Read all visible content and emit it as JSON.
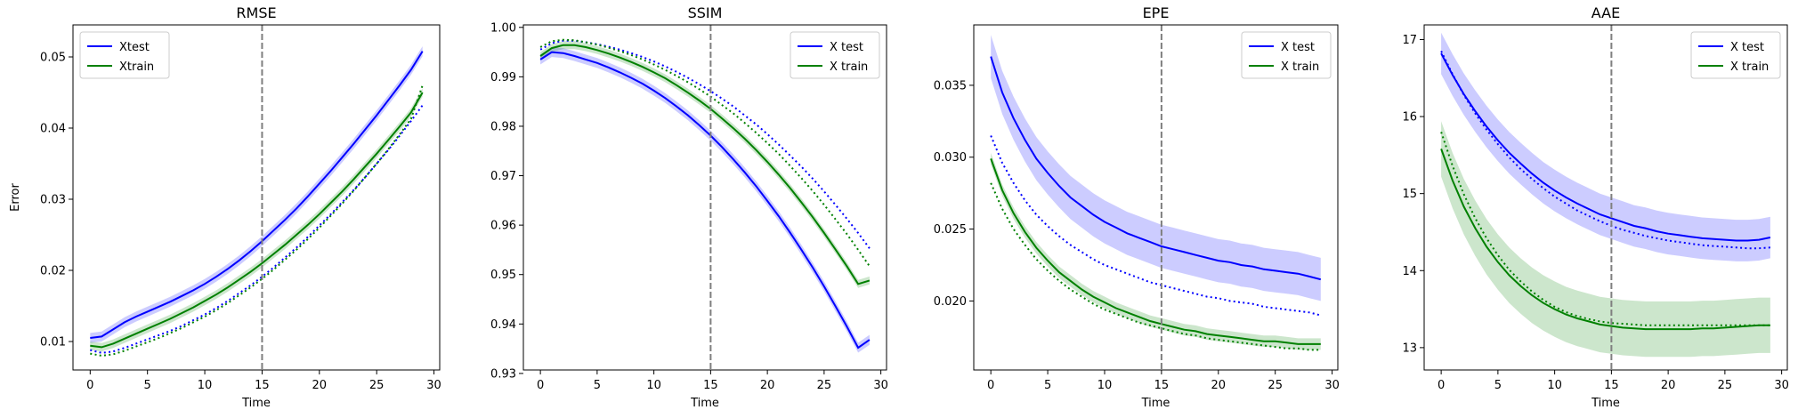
{
  "figure": {
    "colors": {
      "test": "#0000ff",
      "train": "#008000",
      "vline": "#7f7f7f"
    },
    "x_tick_labels": [
      "0",
      "5",
      "10",
      "15",
      "20",
      "25",
      "30"
    ]
  },
  "chart_data": [
    {
      "type": "line",
      "title": "RMSE",
      "xlabel": "Time",
      "ylabel": "Error",
      "xlim": [
        -1.5,
        30.5
      ],
      "ylim": [
        0.006,
        0.0545
      ],
      "x_ticks": [
        0,
        5,
        10,
        15,
        20,
        25,
        30
      ],
      "y_ticks": [
        0.01,
        0.02,
        0.03,
        0.04,
        0.05
      ],
      "y_tick_labels": [
        "0.01",
        "0.02",
        "0.03",
        "0.04",
        "0.05"
      ],
      "vline_x": 15,
      "legend_position": "top-left",
      "grid": false,
      "x": [
        0,
        1,
        2,
        3,
        4,
        5,
        6,
        7,
        8,
        9,
        10,
        11,
        12,
        13,
        14,
        15,
        16,
        17,
        18,
        19,
        20,
        21,
        22,
        23,
        24,
        25,
        26,
        27,
        28,
        29
      ],
      "series": [
        {
          "name": "Xtest",
          "style": "solid",
          "color": "#0000ff",
          "values": [
            0.0105,
            0.0107,
            0.0117,
            0.0127,
            0.0135,
            0.0142,
            0.0149,
            0.0156,
            0.0164,
            0.0172,
            0.0181,
            0.0191,
            0.0202,
            0.0214,
            0.0227,
            0.0241,
            0.0256,
            0.0271,
            0.0287,
            0.0304,
            0.0322,
            0.034,
            0.0359,
            0.0378,
            0.0398,
            0.0418,
            0.0439,
            0.046,
            0.0482,
            0.0508
          ],
          "band_width": 0.0007
        },
        {
          "name": "",
          "style": "dotted",
          "color": "#0000ff",
          "values": [
            0.0088,
            0.0084,
            0.0086,
            0.0091,
            0.0097,
            0.0103,
            0.0109,
            0.0115,
            0.0122,
            0.013,
            0.0138,
            0.0147,
            0.0157,
            0.0168,
            0.0179,
            0.0191,
            0.0204,
            0.0218,
            0.0232,
            0.0247,
            0.0263,
            0.0279,
            0.0296,
            0.0313,
            0.0331,
            0.035,
            0.0369,
            0.0389,
            0.041,
            0.0432
          ]
        },
        {
          "name": "Xtrain",
          "style": "solid",
          "color": "#008000",
          "values": [
            0.0094,
            0.0092,
            0.0097,
            0.0104,
            0.0111,
            0.0118,
            0.0125,
            0.0132,
            0.014,
            0.0148,
            0.0157,
            0.0166,
            0.0176,
            0.0187,
            0.0198,
            0.021,
            0.0223,
            0.0236,
            0.025,
            0.0264,
            0.0279,
            0.0295,
            0.0311,
            0.0328,
            0.0346,
            0.0364,
            0.0383,
            0.0402,
            0.0422,
            0.045
          ],
          "band_width": 0.0006
        },
        {
          "name": "",
          "style": "dotted",
          "color": "#008000",
          "values": [
            0.0083,
            0.008,
            0.0082,
            0.0087,
            0.0093,
            0.0099,
            0.0105,
            0.0112,
            0.0119,
            0.0127,
            0.0135,
            0.0144,
            0.0154,
            0.0165,
            0.0176,
            0.0188,
            0.0201,
            0.0215,
            0.0229,
            0.0244,
            0.026,
            0.0277,
            0.0294,
            0.0312,
            0.0331,
            0.035,
            0.037,
            0.0391,
            0.0413,
            0.046
          ]
        }
      ]
    },
    {
      "type": "line",
      "title": "SSIM",
      "xlabel": "Time",
      "ylabel": "",
      "xlim": [
        -1.5,
        30.5
      ],
      "ylim": [
        0.9307,
        1.0005
      ],
      "x_ticks": [
        0,
        5,
        10,
        15,
        20,
        25,
        30
      ],
      "y_ticks": [
        0.93,
        0.94,
        0.95,
        0.96,
        0.97,
        0.98,
        0.99,
        1.0
      ],
      "y_tick_labels": [
        "0.93",
        "0.94",
        "0.95",
        "0.96",
        "0.97",
        "0.98",
        "0.99",
        "1.00"
      ],
      "vline_x": 15,
      "legend_position": "top-right",
      "grid": false,
      "x": [
        0,
        1,
        2,
        3,
        4,
        5,
        6,
        7,
        8,
        9,
        10,
        11,
        12,
        13,
        14,
        15,
        16,
        17,
        18,
        19,
        20,
        21,
        22,
        23,
        24,
        25,
        26,
        27,
        28,
        29
      ],
      "series": [
        {
          "name": "X test",
          "style": "solid",
          "color": "#0000ff",
          "values": [
            0.9935,
            0.995,
            0.9948,
            0.9942,
            0.9935,
            0.9928,
            0.9919,
            0.9909,
            0.9898,
            0.9886,
            0.9872,
            0.9857,
            0.984,
            0.9822,
            0.9802,
            0.9781,
            0.9758,
            0.9733,
            0.9707,
            0.9679,
            0.9649,
            0.9618,
            0.9585,
            0.955,
            0.9514,
            0.9476,
            0.9436,
            0.9395,
            0.9352,
            0.9368
          ],
          "band_width": 0.001
        },
        {
          "name": "",
          "style": "dotted",
          "color": "#0000ff",
          "values": [
            0.9955,
            0.9968,
            0.9973,
            0.9973,
            0.997,
            0.9966,
            0.9961,
            0.9955,
            0.9948,
            0.994,
            0.9931,
            0.9921,
            0.991,
            0.9898,
            0.9885,
            0.9871,
            0.9856,
            0.984,
            0.9822,
            0.9804,
            0.9784,
            0.9763,
            0.9741,
            0.9718,
            0.9694,
            0.9668,
            0.9641,
            0.9613,
            0.9584,
            0.9553
          ],
          "band_width": 0
        },
        {
          "name": "X train",
          "style": "solid",
          "color": "#008000",
          "values": [
            0.9942,
            0.9958,
            0.9964,
            0.9964,
            0.996,
            0.9954,
            0.9947,
            0.9939,
            0.993,
            0.992,
            0.9909,
            0.9897,
            0.9883,
            0.9868,
            0.9852,
            0.9835,
            0.9816,
            0.9796,
            0.9775,
            0.9752,
            0.9728,
            0.9702,
            0.9675,
            0.9646,
            0.9616,
            0.9584,
            0.9551,
            0.9517,
            0.9481,
            0.9488
          ],
          "band_width": 0.0008
        },
        {
          "name": "",
          "style": "dotted",
          "color": "#008000",
          "values": [
            0.996,
            0.9972,
            0.9975,
            0.9974,
            0.997,
            0.9965,
            0.9959,
            0.9952,
            0.9944,
            0.9935,
            0.9925,
            0.9914,
            0.9902,
            0.9889,
            0.9875,
            0.986,
            0.9843,
            0.9826,
            0.9807,
            0.9787,
            0.9766,
            0.9744,
            0.972,
            0.9695,
            0.9669,
            0.9641,
            0.9612,
            0.9582,
            0.955,
            0.9517
          ],
          "band_width": 0
        }
      ]
    },
    {
      "type": "line",
      "title": "EPE",
      "xlabel": "Time",
      "ylabel": "",
      "xlim": [
        -1.5,
        30.5
      ],
      "ylim": [
        0.0152,
        0.0392
      ],
      "x_ticks": [
        0,
        5,
        10,
        15,
        20,
        25,
        30
      ],
      "y_ticks": [
        0.02,
        0.025,
        0.03,
        0.035
      ],
      "y_tick_labels": [
        "0.020",
        "0.025",
        "0.030",
        "0.035"
      ],
      "vline_x": 15,
      "legend_position": "top-right",
      "grid": false,
      "x": [
        0,
        1,
        2,
        3,
        4,
        5,
        6,
        7,
        8,
        9,
        10,
        11,
        12,
        13,
        14,
        15,
        16,
        17,
        18,
        19,
        20,
        21,
        22,
        23,
        24,
        25,
        26,
        27,
        28,
        29
      ],
      "series": [
        {
          "name": "X test",
          "style": "solid",
          "color": "#0000ff",
          "values": [
            0.037,
            0.0345,
            0.0327,
            0.0312,
            0.0299,
            0.0289,
            0.028,
            0.0272,
            0.0266,
            0.026,
            0.0255,
            0.0251,
            0.0247,
            0.0244,
            0.0241,
            0.0238,
            0.0236,
            0.0234,
            0.0232,
            0.023,
            0.0228,
            0.0227,
            0.0225,
            0.0224,
            0.0222,
            0.0221,
            0.022,
            0.0219,
            0.0217,
            0.0215
          ],
          "band_width": 0.0015
        },
        {
          "name": "",
          "style": "dotted",
          "color": "#0000ff",
          "values": [
            0.0315,
            0.0296,
            0.0282,
            0.027,
            0.026,
            0.0252,
            0.0245,
            0.0239,
            0.0234,
            0.0229,
            0.0225,
            0.0222,
            0.0219,
            0.0216,
            0.0213,
            0.0211,
            0.0209,
            0.0207,
            0.0205,
            0.0203,
            0.0202,
            0.02,
            0.0199,
            0.0198,
            0.0196,
            0.0195,
            0.0194,
            0.0193,
            0.0192,
            0.019
          ]
        },
        {
          "name": "X train",
          "style": "solid",
          "color": "#008000",
          "values": [
            0.0299,
            0.0277,
            0.0261,
            0.0248,
            0.0237,
            0.0228,
            0.022,
            0.0214,
            0.0208,
            0.0203,
            0.0199,
            0.0195,
            0.0192,
            0.0189,
            0.0186,
            0.0184,
            0.0182,
            0.018,
            0.0179,
            0.0177,
            0.0176,
            0.0175,
            0.0174,
            0.0173,
            0.0172,
            0.0172,
            0.0171,
            0.017,
            0.017,
            0.017
          ],
          "band_width": 0.0004
        },
        {
          "name": "",
          "style": "dotted",
          "color": "#008000",
          "values": [
            0.0282,
            0.0264,
            0.025,
            0.0239,
            0.0229,
            0.0221,
            0.0214,
            0.0208,
            0.0203,
            0.0198,
            0.0194,
            0.0191,
            0.0188,
            0.0185,
            0.0183,
            0.0181,
            0.0179,
            0.0177,
            0.0176,
            0.0174,
            0.0173,
            0.0172,
            0.0171,
            0.017,
            0.0169,
            0.0168,
            0.0167,
            0.0167,
            0.0166,
            0.0166
          ]
        }
      ]
    },
    {
      "type": "line",
      "title": "AAE",
      "xlabel": "Time",
      "ylabel": "",
      "xlim": [
        -1.5,
        30.5
      ],
      "ylim": [
        12.71,
        17.19
      ],
      "x_ticks": [
        0,
        5,
        10,
        15,
        20,
        25,
        30
      ],
      "y_ticks": [
        13,
        14,
        15,
        16,
        17
      ],
      "y_tick_labels": [
        "13",
        "14",
        "15",
        "16",
        "17"
      ],
      "vline_x": 15,
      "legend_position": "top-right",
      "grid": false,
      "x": [
        0,
        1,
        2,
        3,
        4,
        5,
        6,
        7,
        8,
        9,
        10,
        11,
        12,
        13,
        14,
        15,
        16,
        17,
        18,
        19,
        20,
        21,
        22,
        23,
        24,
        25,
        26,
        27,
        28,
        29
      ],
      "series": [
        {
          "name": "X test",
          "style": "solid",
          "color": "#0000ff",
          "values": [
            16.82,
            16.54,
            16.29,
            16.07,
            15.87,
            15.69,
            15.53,
            15.39,
            15.26,
            15.14,
            15.04,
            14.95,
            14.87,
            14.8,
            14.73,
            14.68,
            14.63,
            14.58,
            14.55,
            14.51,
            14.48,
            14.46,
            14.44,
            14.42,
            14.41,
            14.4,
            14.39,
            14.39,
            14.4,
            14.43
          ],
          "band_width": 0.27
        },
        {
          "name": "",
          "style": "dotted",
          "color": "#0000ff",
          "values": [
            16.85,
            16.55,
            16.28,
            16.04,
            15.83,
            15.64,
            15.47,
            15.32,
            15.19,
            15.07,
            14.96,
            14.87,
            14.78,
            14.71,
            14.64,
            14.58,
            14.53,
            14.49,
            14.45,
            14.42,
            14.39,
            14.37,
            14.35,
            14.33,
            14.32,
            14.31,
            14.3,
            14.29,
            14.29,
            14.3
          ]
        },
        {
          "name": "X train",
          "style": "solid",
          "color": "#008000",
          "values": [
            15.58,
            15.17,
            14.83,
            14.55,
            14.31,
            14.11,
            13.94,
            13.8,
            13.68,
            13.58,
            13.5,
            13.43,
            13.38,
            13.34,
            13.3,
            13.28,
            13.26,
            13.25,
            13.24,
            13.24,
            13.24,
            13.24,
            13.24,
            13.25,
            13.25,
            13.26,
            13.27,
            13.28,
            13.29,
            13.29
          ],
          "band_width": 0.36
        },
        {
          "name": "",
          "style": "dotted",
          "color": "#008000",
          "values": [
            15.8,
            15.36,
            14.99,
            14.68,
            14.42,
            14.2,
            14.01,
            13.86,
            13.73,
            13.62,
            13.53,
            13.46,
            13.41,
            13.37,
            13.34,
            13.32,
            13.31,
            13.3,
            13.29,
            13.29,
            13.29,
            13.29,
            13.29,
            13.29,
            13.29,
            13.29,
            13.29,
            13.29,
            13.29,
            13.29
          ]
        }
      ]
    }
  ]
}
